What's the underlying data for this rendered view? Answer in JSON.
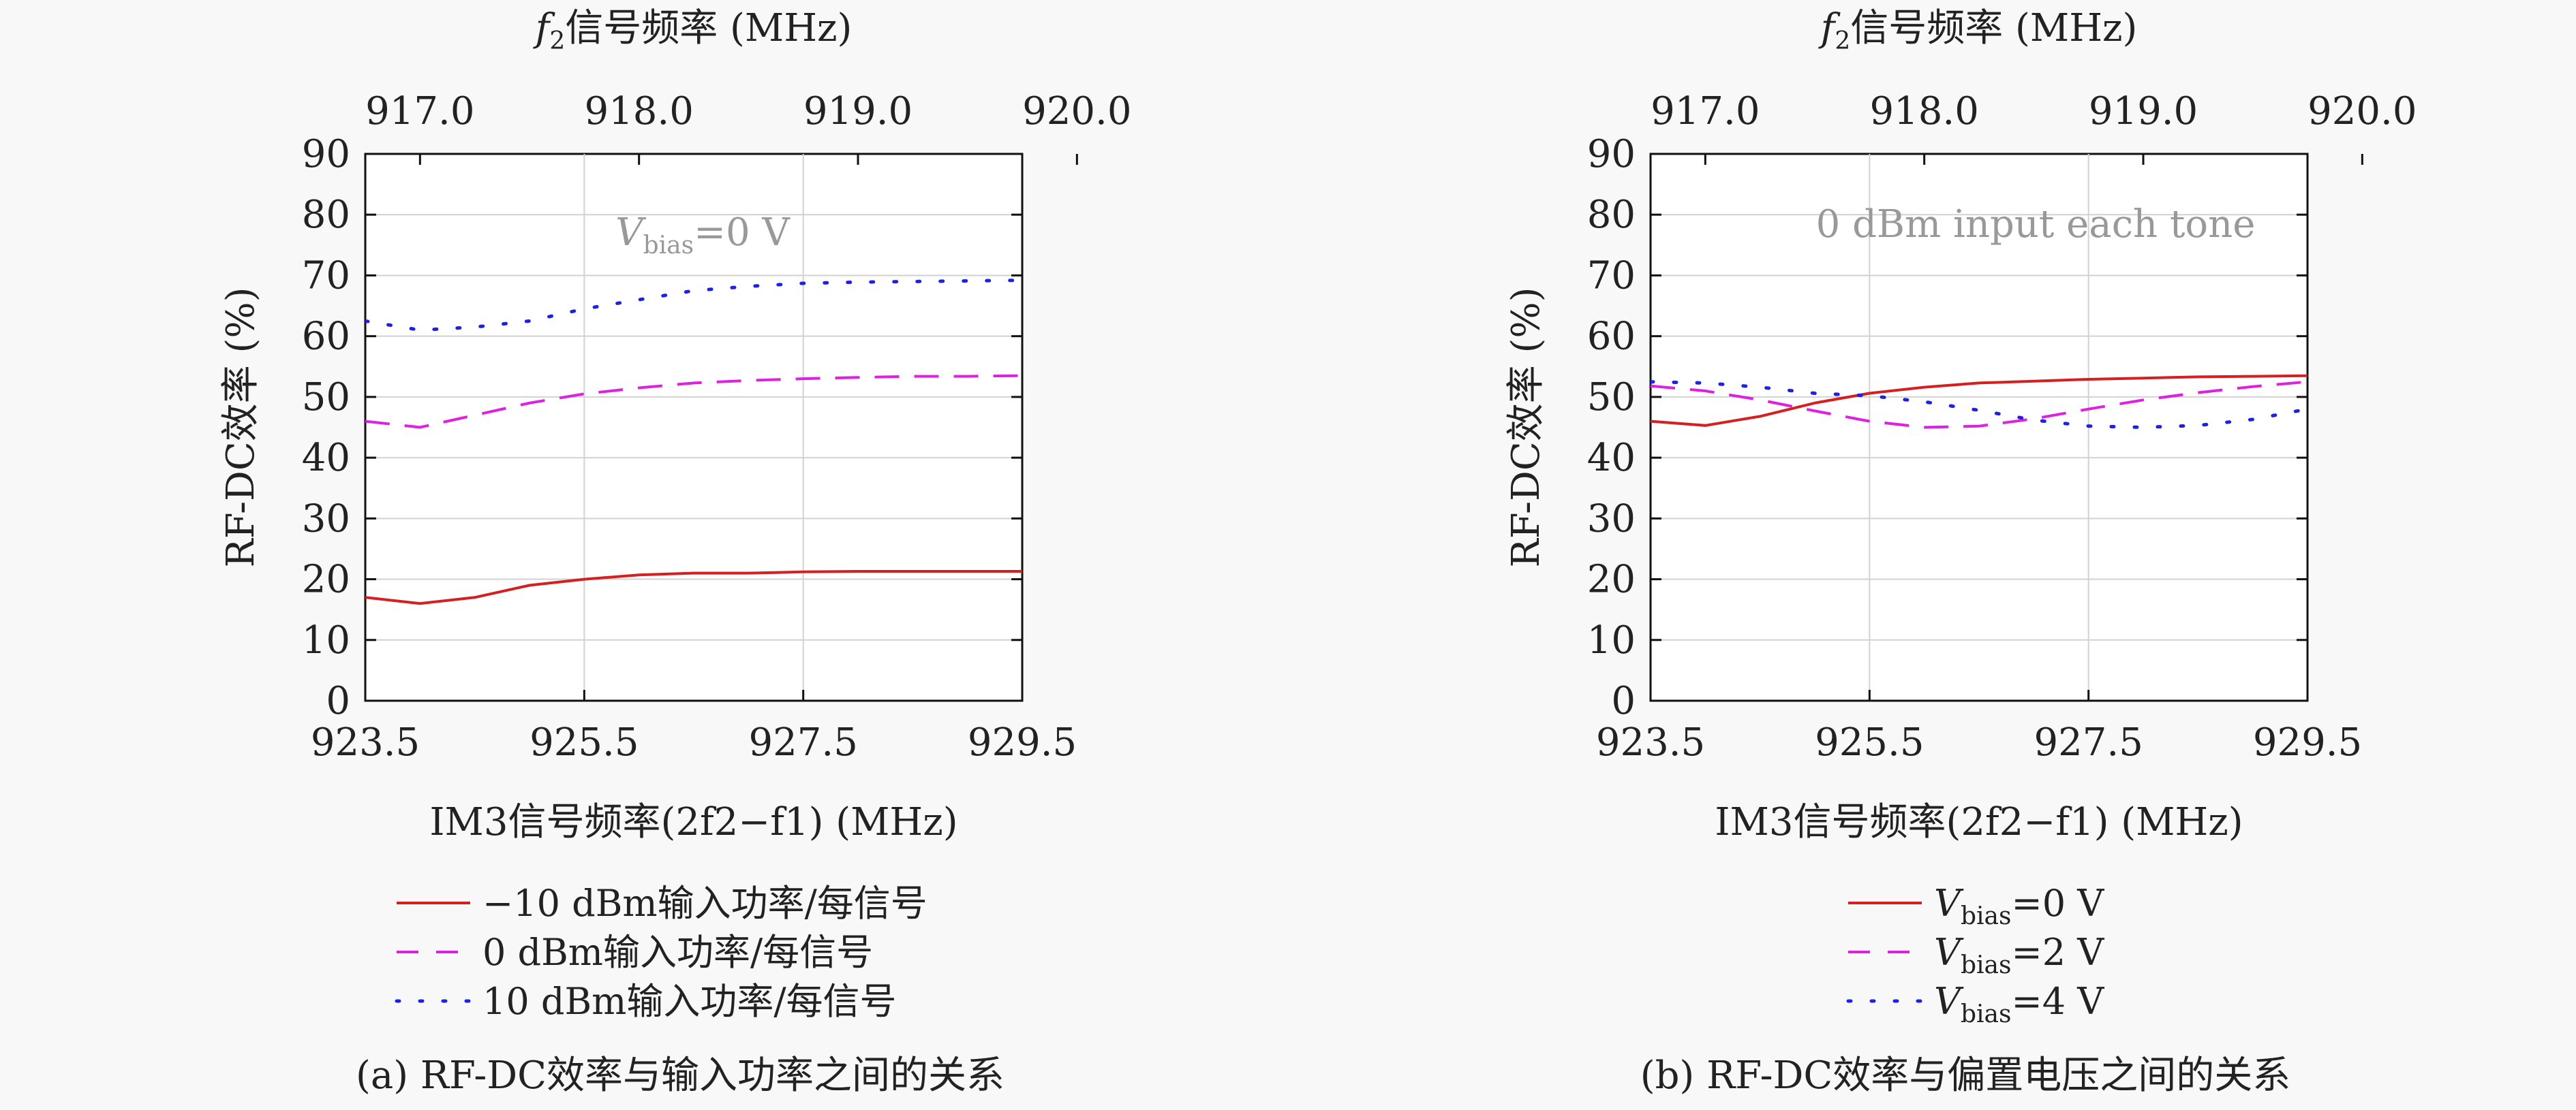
{
  "chart_data": [
    {
      "panel_id": "a",
      "type": "line",
      "top_axis_label": "信号频率 (MHz)",
      "top_axis_var": "f",
      "top_axis_sub": "2",
      "top_ticks": [
        "917.0",
        "918.0",
        "919.0",
        "920.0"
      ],
      "top_tick_values": [
        917.0,
        918.0,
        919.0,
        920.0
      ],
      "top_xlim": [
        916.75,
        919.75
      ],
      "xlabel": "IM3信号频率(2f2−f1) (MHz)",
      "x_ticks": [
        "923.5",
        "925.5",
        "927.5",
        "929.5"
      ],
      "x_tick_values": [
        923.5,
        925.5,
        927.5,
        929.5
      ],
      "xlim": [
        923.5,
        929.5
      ],
      "ylabel": "RF-DC效率 (%)",
      "y_ticks": [
        "0",
        "10",
        "20",
        "30",
        "40",
        "50",
        "60",
        "70",
        "80",
        "90"
      ],
      "ylim": [
        0,
        90
      ],
      "grid": true,
      "annotation": "Vbias=0 V",
      "annotation_var": "V",
      "annotation_sub": "bias",
      "annotation_rest": "=0 V",
      "x": [
        923.5,
        924.0,
        924.5,
        925.0,
        925.5,
        926.0,
        926.5,
        927.0,
        927.5,
        928.0,
        928.5,
        929.0,
        929.5
      ],
      "series": [
        {
          "name": "−10 dBm输入功率/每信号",
          "color": "#d42020",
          "dash": "solid",
          "values": [
            17,
            16,
            17,
            19,
            20,
            20.7,
            21,
            21,
            21.2,
            21.3,
            21.3,
            21.3,
            21.3
          ]
        },
        {
          "name": "0 dBm输入功率/每信号",
          "color": "#e020e0",
          "dash": "dashed",
          "values": [
            46,
            45,
            47,
            49,
            50.5,
            51.5,
            52.3,
            52.7,
            53,
            53.2,
            53.4,
            53.4,
            53.5
          ]
        },
        {
          "name": "10 dBm输入功率/每信号",
          "color": "#2020e0",
          "dash": "dotted",
          "values": [
            62.5,
            61,
            61.5,
            62.5,
            64.5,
            66,
            67.5,
            68.2,
            68.7,
            68.9,
            69,
            69.1,
            69.2
          ]
        }
      ],
      "caption": "(a) RF-DC效率与输入功率之间的关系"
    },
    {
      "panel_id": "b",
      "type": "line",
      "top_axis_label": "信号频率 (MHz)",
      "top_axis_var": "f",
      "top_axis_sub": "2",
      "top_ticks": [
        "917.0",
        "918.0",
        "919.0",
        "920.0"
      ],
      "top_tick_values": [
        917.0,
        918.0,
        919.0,
        920.0
      ],
      "top_xlim": [
        916.75,
        919.75
      ],
      "xlabel": "IM3信号频率(2f2−f1) (MHz)",
      "x_ticks": [
        "923.5",
        "925.5",
        "927.5",
        "929.5"
      ],
      "x_tick_values": [
        923.5,
        925.5,
        927.5,
        929.5
      ],
      "xlim": [
        923.5,
        929.5
      ],
      "ylabel": "RF-DC效率 (%)",
      "y_ticks": [
        "0",
        "10",
        "20",
        "30",
        "40",
        "50",
        "60",
        "70",
        "80",
        "90"
      ],
      "ylim": [
        0,
        90
      ],
      "grid": true,
      "annotation": "0 dBm input each tone",
      "x": [
        923.5,
        924.0,
        924.5,
        925.0,
        925.5,
        926.0,
        926.5,
        927.0,
        927.5,
        928.0,
        928.5,
        929.0,
        929.5
      ],
      "series": [
        {
          "name": "Vbias=0 V",
          "name_var": "V",
          "name_sub": "bias",
          "name_rest": "=0 V",
          "color": "#d42020",
          "dash": "solid",
          "values": [
            46,
            45.3,
            46.8,
            49,
            50.6,
            51.6,
            52.3,
            52.6,
            52.9,
            53.1,
            53.3,
            53.4,
            53.5
          ]
        },
        {
          "name": "Vbias=2 V",
          "name_var": "V",
          "name_sub": "bias",
          "name_rest": "=2 V",
          "color": "#e020e0",
          "dash": "dashed",
          "values": [
            51.8,
            51,
            49.5,
            47.7,
            46,
            45,
            45.2,
            46.4,
            48,
            49.5,
            50.7,
            51.7,
            52.5
          ]
        },
        {
          "name": "Vbias=4 V",
          "name_var": "V",
          "name_sub": "bias",
          "name_rest": "=4 V",
          "color": "#2020e0",
          "dash": "dotted",
          "values": [
            52.5,
            52.3,
            51.6,
            50.6,
            50.2,
            49.2,
            47.8,
            46.2,
            45.2,
            45,
            45.3,
            46.3,
            48
          ]
        }
      ],
      "caption": "(b) RF-DC效率与偏置电压之间的关系"
    }
  ]
}
